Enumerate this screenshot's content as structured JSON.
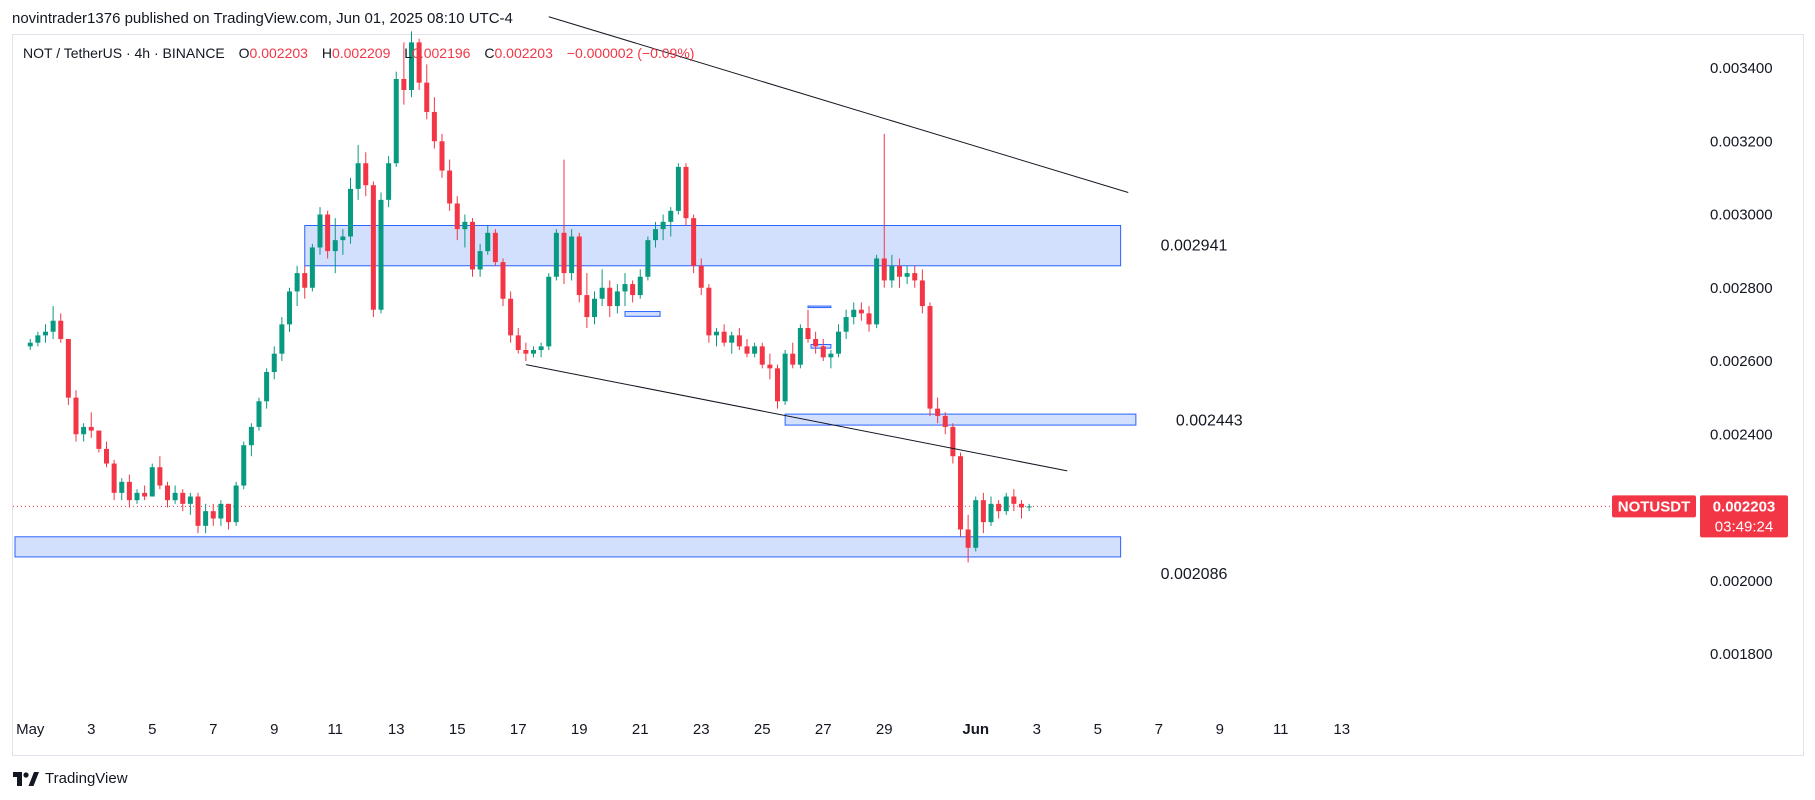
{
  "header": {
    "publish_text": "novintrader1376 published on TradingView.com, Jun 01, 2025 08:10 UTC-4"
  },
  "legend": {
    "symbol": "NOT / TetherUS · 4h · BINANCE",
    "o_label": "O",
    "o_value": "0.002203",
    "h_label": "H",
    "h_value": "0.002209",
    "l_label": "L",
    "l_value": "0.002196",
    "c_label": "C",
    "c_value": "0.002203",
    "change": "−0.000002 (−0.09%)"
  },
  "price_tag": {
    "symbol": "NOTUSDT",
    "price": "0.002203",
    "countdown": "03:49:24"
  },
  "branding": {
    "logo_icon": "tradingview-logo-icon",
    "name": "TradingView"
  },
  "colors": {
    "up": "#26a69a",
    "up_candle": "#089981",
    "down": "#f23645",
    "zone_fill": "#d3e0fd",
    "zone_border": "#2962ff",
    "trendline": "#131722",
    "grid": "#f0f3fa"
  },
  "chart_data": {
    "type": "candlestick",
    "symbol": "NOT / TetherUS",
    "interval": "4h",
    "exchange": "BINANCE",
    "y_axis": {
      "ticks": [
        0.0034,
        0.0032,
        0.003,
        0.0028,
        0.0026,
        0.0024,
        0.0022,
        0.002,
        0.0018
      ],
      "tick_labels": [
        "0.003400",
        "0.003200",
        "0.003000",
        "0.002800",
        "0.002600",
        "0.002400",
        "",
        "0.002000",
        "0.001800"
      ]
    },
    "x_axis": {
      "tick_labels": [
        "May",
        "3",
        "5",
        "7",
        "9",
        "11",
        "13",
        "15",
        "17",
        "19",
        "21",
        "23",
        "25",
        "27",
        "29",
        "Jun",
        "3",
        "5",
        "7",
        "9",
        "11",
        "13"
      ]
    },
    "last_price": 0.002203,
    "candles": [
      [
        1.0,
        0.00264,
        0.00266,
        0.00263,
        0.00265
      ],
      [
        1.5,
        0.00265,
        0.00268,
        0.00264,
        0.00267
      ],
      [
        2.0,
        0.00267,
        0.0027,
        0.00265,
        0.00268
      ],
      [
        2.5,
        0.00268,
        0.00275,
        0.00266,
        0.00271
      ],
      [
        3.0,
        0.00271,
        0.00273,
        0.00265,
        0.00266
      ],
      [
        3.5,
        0.00266,
        0.00266,
        0.00248,
        0.0025
      ],
      [
        4.0,
        0.0025,
        0.00252,
        0.00238,
        0.0024
      ],
      [
        4.5,
        0.0024,
        0.00243,
        0.00238,
        0.00242
      ],
      [
        5.0,
        0.00242,
        0.00246,
        0.00239,
        0.00241
      ],
      [
        5.5,
        0.00241,
        0.00241,
        0.00235,
        0.00236
      ],
      [
        6.0,
        0.00236,
        0.00238,
        0.00231,
        0.00232
      ],
      [
        6.5,
        0.00232,
        0.00233,
        0.00222,
        0.00224
      ],
      [
        7.0,
        0.00224,
        0.00228,
        0.00222,
        0.00227
      ],
      [
        7.5,
        0.00227,
        0.00229,
        0.0022,
        0.00222
      ],
      [
        8.0,
        0.00222,
        0.00225,
        0.00221,
        0.00224
      ],
      [
        8.5,
        0.00224,
        0.00226,
        0.00222,
        0.00223
      ],
      [
        9.0,
        0.00223,
        0.00232,
        0.00223,
        0.00231
      ],
      [
        9.5,
        0.00231,
        0.00234,
        0.00225,
        0.00226
      ],
      [
        10.0,
        0.00226,
        0.00227,
        0.0022,
        0.00222
      ],
      [
        10.5,
        0.00222,
        0.00226,
        0.00221,
        0.00224
      ],
      [
        11.0,
        0.00224,
        0.00225,
        0.00219,
        0.00221
      ],
      [
        11.5,
        0.00221,
        0.00224,
        0.00218,
        0.00223
      ],
      [
        12.0,
        0.00223,
        0.00224,
        0.00213,
        0.00215
      ],
      [
        12.5,
        0.00215,
        0.00221,
        0.00213,
        0.00219
      ],
      [
        13.0,
        0.00219,
        0.00221,
        0.00215,
        0.00217
      ],
      [
        13.5,
        0.00217,
        0.00222,
        0.00215,
        0.00221
      ],
      [
        14.0,
        0.00221,
        0.00221,
        0.00214,
        0.00216
      ],
      [
        14.5,
        0.00216,
        0.00227,
        0.00215,
        0.00226
      ],
      [
        15.0,
        0.00226,
        0.00238,
        0.00225,
        0.00237
      ],
      [
        15.5,
        0.00237,
        0.00243,
        0.00234,
        0.00242
      ],
      [
        16.0,
        0.00242,
        0.0025,
        0.00241,
        0.00249
      ],
      [
        16.5,
        0.00249,
        0.00258,
        0.00247,
        0.00257
      ],
      [
        17.0,
        0.00257,
        0.00264,
        0.00255,
        0.00262
      ],
      [
        17.5,
        0.00262,
        0.00272,
        0.0026,
        0.0027
      ],
      [
        18.0,
        0.0027,
        0.0028,
        0.00268,
        0.00279
      ],
      [
        18.5,
        0.00279,
        0.00286,
        0.00275,
        0.00284
      ],
      [
        19.0,
        0.00284,
        0.00286,
        0.00277,
        0.0028
      ],
      [
        19.5,
        0.0028,
        0.00292,
        0.00279,
        0.00291
      ],
      [
        20.0,
        0.00291,
        0.00302,
        0.00289,
        0.003
      ],
      [
        20.5,
        0.003,
        0.00301,
        0.00288,
        0.0029
      ],
      [
        21.0,
        0.0029,
        0.00299,
        0.00284,
        0.00293
      ],
      [
        21.5,
        0.00293,
        0.00296,
        0.00289,
        0.00294
      ],
      [
        22.0,
        0.00294,
        0.0031,
        0.00292,
        0.00307
      ],
      [
        22.5,
        0.00307,
        0.00319,
        0.00304,
        0.00314
      ],
      [
        23.0,
        0.00314,
        0.00317,
        0.00305,
        0.00308
      ],
      [
        23.5,
        0.00308,
        0.00309,
        0.00272,
        0.00274
      ],
      [
        24.0,
        0.00274,
        0.00306,
        0.00273,
        0.00304
      ],
      [
        24.5,
        0.00304,
        0.00316,
        0.00302,
        0.00314
      ],
      [
        25.0,
        0.00314,
        0.00339,
        0.00313,
        0.00337
      ],
      [
        25.5,
        0.00337,
        0.00347,
        0.0033,
        0.00334
      ],
      [
        26.0,
        0.00334,
        0.0035,
        0.00332,
        0.00347
      ],
      [
        26.5,
        0.00347,
        0.00348,
        0.00334,
        0.00336
      ],
      [
        27.0,
        0.00336,
        0.00341,
        0.00326,
        0.00328
      ],
      [
        27.5,
        0.00328,
        0.00332,
        0.00318,
        0.0032
      ],
      [
        28.0,
        0.0032,
        0.00322,
        0.0031,
        0.00312
      ],
      [
        28.5,
        0.00312,
        0.00315,
        0.00301,
        0.00303
      ],
      [
        29.0,
        0.00303,
        0.00305,
        0.00293,
        0.00296
      ],
      [
        29.5,
        0.00296,
        0.003,
        0.00291,
        0.00298
      ],
      [
        30.0,
        0.00298,
        0.00299,
        0.00283,
        0.00285
      ],
      [
        30.5,
        0.00285,
        0.00292,
        0.00283,
        0.0029
      ],
      [
        31.0,
        0.0029,
        0.00297,
        0.00289,
        0.00295
      ],
      [
        31.5,
        0.00295,
        0.00296,
        0.00286,
        0.00287
      ],
      [
        32.0,
        0.00287,
        0.00288,
        0.00275,
        0.00277
      ],
      [
        32.5,
        0.00277,
        0.00279,
        0.00265,
        0.00267
      ],
      [
        33.0,
        0.00267,
        0.00269,
        0.00262,
        0.00263
      ],
      [
        33.5,
        0.00263,
        0.00265,
        0.0026,
        0.00262
      ],
      [
        34.0,
        0.00262,
        0.00264,
        0.00261,
        0.00263
      ],
      [
        34.5,
        0.00263,
        0.00265,
        0.00261,
        0.00264
      ],
      [
        35.0,
        0.00264,
        0.00284,
        0.00263,
        0.00283
      ],
      [
        35.5,
        0.00283,
        0.00296,
        0.00282,
        0.00295
      ],
      [
        36.0,
        0.00295,
        0.00315,
        0.00281,
        0.00284
      ],
      [
        36.5,
        0.00284,
        0.00296,
        0.00282,
        0.00294
      ],
      [
        37.0,
        0.00294,
        0.00295,
        0.00276,
        0.00278
      ],
      [
        37.5,
        0.00278,
        0.00284,
        0.00269,
        0.00272
      ],
      [
        38.0,
        0.00272,
        0.00279,
        0.0027,
        0.00277
      ],
      [
        38.5,
        0.00277,
        0.00285,
        0.00275,
        0.0028
      ],
      [
        39.0,
        0.0028,
        0.00282,
        0.00272,
        0.00275
      ],
      [
        39.5,
        0.00275,
        0.00281,
        0.00273,
        0.00279
      ],
      [
        40.0,
        0.00279,
        0.00284,
        0.00275,
        0.00281
      ],
      [
        40.5,
        0.00281,
        0.00282,
        0.00276,
        0.00278
      ],
      [
        41.0,
        0.00278,
        0.00285,
        0.00277,
        0.00283
      ],
      [
        41.5,
        0.00283,
        0.00294,
        0.00282,
        0.00293
      ],
      [
        42.0,
        0.00293,
        0.00298,
        0.00291,
        0.00296
      ],
      [
        42.5,
        0.00296,
        0.003,
        0.00293,
        0.00298
      ],
      [
        43.0,
        0.00298,
        0.00302,
        0.00294,
        0.00301
      ],
      [
        43.5,
        0.00301,
        0.00314,
        0.003,
        0.00313
      ],
      [
        44.0,
        0.00313,
        0.00314,
        0.00297,
        0.00299
      ],
      [
        44.5,
        0.00299,
        0.003,
        0.00284,
        0.00286
      ],
      [
        45.0,
        0.00286,
        0.00288,
        0.00278,
        0.0028
      ],
      [
        45.5,
        0.0028,
        0.00281,
        0.00265,
        0.00267
      ],
      [
        46.0,
        0.00267,
        0.00269,
        0.00264,
        0.00268
      ],
      [
        46.5,
        0.00268,
        0.0027,
        0.00264,
        0.00265
      ],
      [
        47.0,
        0.00265,
        0.00268,
        0.00262,
        0.00267
      ],
      [
        47.5,
        0.00267,
        0.00269,
        0.00263,
        0.00264
      ],
      [
        48.0,
        0.00264,
        0.00266,
        0.00261,
        0.00262
      ],
      [
        48.5,
        0.00262,
        0.00265,
        0.00261,
        0.00264
      ],
      [
        49.0,
        0.00264,
        0.00265,
        0.00258,
        0.00259
      ],
      [
        49.5,
        0.00259,
        0.00262,
        0.00255,
        0.00258
      ],
      [
        50.0,
        0.00258,
        0.00259,
        0.00247,
        0.00249
      ],
      [
        50.5,
        0.00249,
        0.00263,
        0.00248,
        0.00262
      ],
      [
        51.0,
        0.00262,
        0.00265,
        0.00258,
        0.00259
      ],
      [
        51.5,
        0.00259,
        0.0027,
        0.00258,
        0.00269
      ],
      [
        52.0,
        0.00269,
        0.00274,
        0.00265,
        0.00266
      ],
      [
        52.5,
        0.00266,
        0.00268,
        0.00262,
        0.00264
      ],
      [
        53.0,
        0.00264,
        0.00266,
        0.0026,
        0.00261
      ],
      [
        53.5,
        0.00261,
        0.00263,
        0.00258,
        0.00262
      ],
      [
        54.0,
        0.00262,
        0.0027,
        0.00261,
        0.00268
      ],
      [
        54.5,
        0.00268,
        0.00274,
        0.00266,
        0.00272
      ],
      [
        55.0,
        0.00272,
        0.00276,
        0.0027,
        0.00274
      ],
      [
        55.5,
        0.00274,
        0.00276,
        0.00271,
        0.00273
      ],
      [
        56.0,
        0.00273,
        0.00275,
        0.00268,
        0.0027
      ],
      [
        56.5,
        0.0027,
        0.00289,
        0.00269,
        0.00288
      ],
      [
        57.0,
        0.00288,
        0.00322,
        0.0028,
        0.00282
      ],
      [
        57.5,
        0.00282,
        0.00289,
        0.0028,
        0.00286
      ],
      [
        58.0,
        0.00286,
        0.00288,
        0.0028,
        0.00283
      ],
      [
        58.5,
        0.00283,
        0.00286,
        0.00281,
        0.00284
      ],
      [
        59.0,
        0.00284,
        0.00286,
        0.0028,
        0.00282
      ],
      [
        59.5,
        0.00282,
        0.00285,
        0.00273,
        0.00275
      ],
      [
        60.0,
        0.00275,
        0.00276,
        0.00245,
        0.00247
      ],
      [
        60.5,
        0.00247,
        0.0025,
        0.00243,
        0.00245
      ],
      [
        61.0,
        0.00245,
        0.00246,
        0.0024,
        0.00242
      ],
      [
        61.5,
        0.00242,
        0.00243,
        0.00232,
        0.00234
      ],
      [
        62.0,
        0.00234,
        0.00235,
        0.00212,
        0.00214
      ],
      [
        62.5,
        0.00214,
        0.00218,
        0.00205,
        0.00209
      ],
      [
        63.0,
        0.00209,
        0.00223,
        0.00208,
        0.00222
      ],
      [
        63.5,
        0.00222,
        0.00224,
        0.00213,
        0.00216
      ],
      [
        64.0,
        0.00216,
        0.00223,
        0.00215,
        0.00221
      ],
      [
        64.5,
        0.00221,
        0.00222,
        0.00217,
        0.00219
      ],
      [
        65.0,
        0.00219,
        0.00224,
        0.00218,
        0.00223
      ],
      [
        65.5,
        0.00223,
        0.00225,
        0.00219,
        0.00221
      ],
      [
        66.0,
        0.00221,
        0.00222,
        0.00217,
        0.0022
      ],
      [
        66.5,
        0.0022,
        0.00221,
        0.00219,
        0.002203
      ]
    ],
    "zones": [
      {
        "top": 0.00297,
        "bottom": 0.00286,
        "x_start": 19.0,
        "x_end": 72.5,
        "label": "0.002941"
      },
      {
        "top": 0.002455,
        "bottom": 0.002425,
        "x_start": 50.5,
        "x_end": 73.5,
        "label": "0.002443"
      },
      {
        "top": 0.00212,
        "bottom": 0.002065,
        "x_start": 0.0,
        "x_end": 72.5,
        "label": "0.002086"
      }
    ],
    "small_zones": [
      {
        "top": 0.002735,
        "bottom": 0.002722,
        "x_start": 40.0,
        "x_end": 42.3
      },
      {
        "top": 0.002645,
        "bottom": 0.002635,
        "x_start": 52.2,
        "x_end": 53.5
      },
      {
        "top": 0.00275,
        "bottom": 0.00275,
        "x_start": 52.0,
        "x_end": 53.5
      }
    ],
    "trendlines": [
      {
        "x1": 35.0,
        "y1": 0.00354,
        "x2": 73.0,
        "y2": 0.00306
      },
      {
        "x1": 33.5,
        "y1": 0.00259,
        "x2": 69.0,
        "y2": 0.0023
      }
    ]
  }
}
